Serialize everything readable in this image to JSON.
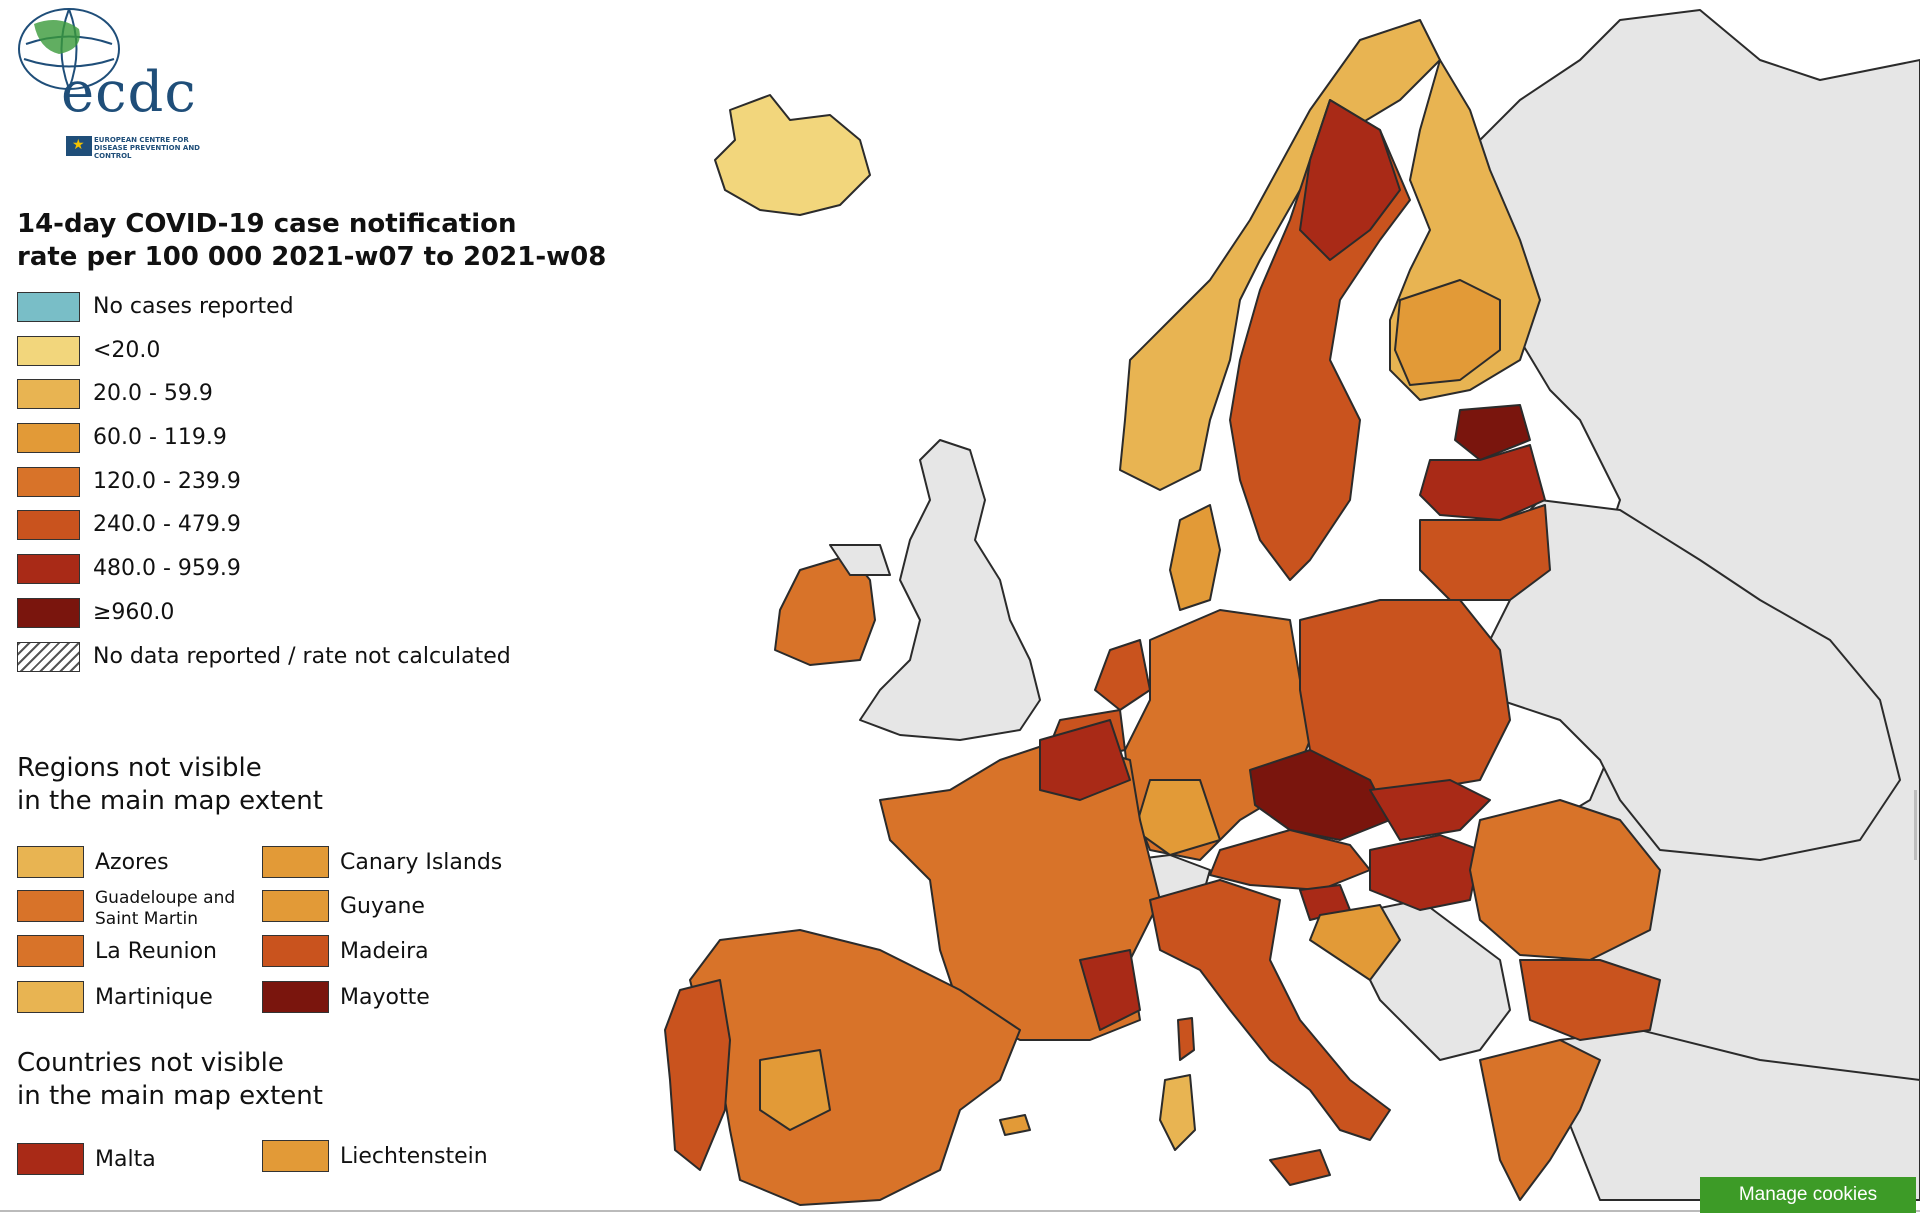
{
  "brand": {
    "logo_text": "ecdc",
    "logo_subtitle": "EUROPEAN CENTRE FOR DISEASE PREVENTION AND CONTROL"
  },
  "legend": {
    "title_line1": "14-day COVID-19 case notification",
    "title_line2": "rate per 100 000 2021-w07 to 2021-w08",
    "items": [
      {
        "label": "No cases reported",
        "color": "#79bec7"
      },
      {
        "label": "<20.0",
        "color": "#f2d67c"
      },
      {
        "label": "20.0 - 59.9",
        "color": "#e8b452"
      },
      {
        "label": "60.0 - 119.9",
        "color": "#e29a37"
      },
      {
        "label": "120.0 - 239.9",
        "color": "#d87329"
      },
      {
        "label": "240.0 - 479.9",
        "color": "#c9531e"
      },
      {
        "label": "480.0 - 959.9",
        "color": "#a92a17"
      },
      {
        "label": "≥960.0",
        "color": "#7a150d"
      },
      {
        "label": "No data reported / rate not calculated",
        "color": "hatched"
      }
    ]
  },
  "regions_not_visible": {
    "title_line1": "Regions not visible",
    "title_line2": "in the main map extent",
    "items": [
      {
        "label": "Azores",
        "color": "#e8b452"
      },
      {
        "label": "Canary Islands",
        "color": "#e29a37"
      },
      {
        "label": "Guadeloupe and Saint Martin",
        "color": "#d87329"
      },
      {
        "label": "Guyane",
        "color": "#e29a37"
      },
      {
        "label": "La Reunion",
        "color": "#d87329"
      },
      {
        "label": "Madeira",
        "color": "#c9531e"
      },
      {
        "label": "Martinique",
        "color": "#e8b452"
      },
      {
        "label": "Mayotte",
        "color": "#7a150d"
      }
    ]
  },
  "countries_not_visible": {
    "title_line1": "Countries not visible",
    "title_line2": "in the main map extent",
    "items": [
      {
        "label": "Malta",
        "color": "#a92a17"
      },
      {
        "label": "Liechtenstein",
        "color": "#e29a37"
      }
    ]
  },
  "cookie_button": {
    "label": "Manage cookies"
  },
  "map_colors": {
    "not_included": "#e6e6e6",
    "sea": "#ffffff",
    "border": "#333333"
  }
}
